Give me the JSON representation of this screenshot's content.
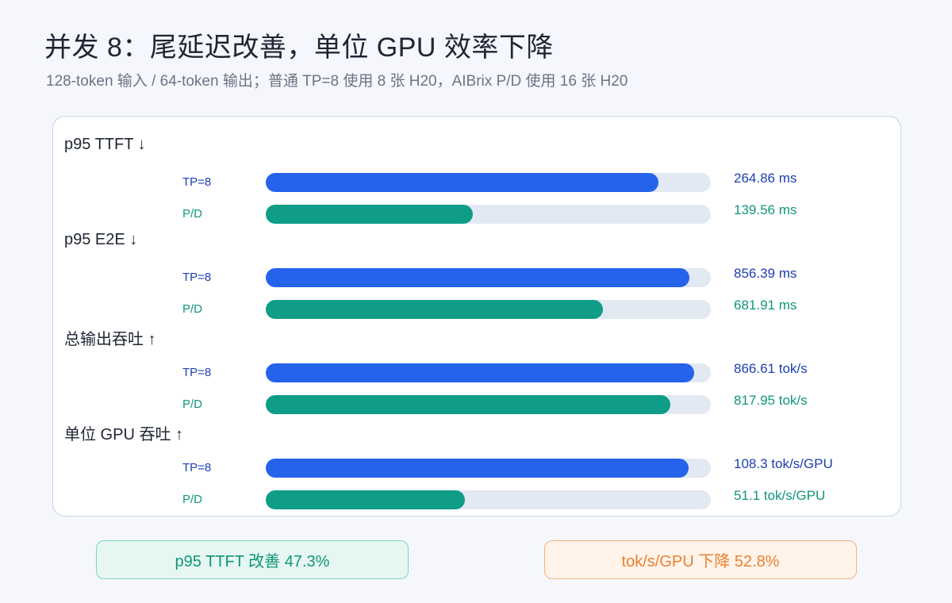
{
  "header": {
    "title": "并发 8：尾延迟改善，单位 GPU 效率下降",
    "subtitle": "128-token 输入 / 64-token 输出；普通 TP=8 使用 8 张 H20，AIBrix P/D 使用 16 张 H20"
  },
  "chart_data": {
    "type": "bar",
    "orientation": "horizontal",
    "legend": "none",
    "grid": false,
    "groups": [
      {
        "title": "p95 TTFT ↓",
        "max": 300,
        "rows": [
          {
            "label": "TP=8",
            "value": 264.86,
            "display": "264.86 ms",
            "color": "#2563eb",
            "text_color": "#1d3fb0"
          },
          {
            "label": "P/D",
            "value": 139.56,
            "display": "139.56 ms",
            "color": "#0f9d87",
            "text_color": "#11967a"
          }
        ]
      },
      {
        "title": "p95 E2E ↓",
        "max": 900,
        "rows": [
          {
            "label": "TP=8",
            "value": 856.39,
            "display": "856.39 ms",
            "color": "#2563eb",
            "text_color": "#1d3fb0"
          },
          {
            "label": "P/D",
            "value": 681.91,
            "display": "681.91 ms",
            "color": "#0f9d87",
            "text_color": "#11967a"
          }
        ]
      },
      {
        "title": "总输出吞吐 ↑",
        "max": 900,
        "rows": [
          {
            "label": "TP=8",
            "value": 866.61,
            "display": "866.61 tok/s",
            "color": "#2563eb",
            "text_color": "#1d3fb0"
          },
          {
            "label": "P/D",
            "value": 817.95,
            "display": "817.95 tok/s",
            "color": "#0f9d87",
            "text_color": "#11967a"
          }
        ]
      },
      {
        "title": "单位 GPU 吞吐 ↑",
        "max": 114,
        "rows": [
          {
            "label": "TP=8",
            "value": 108.3,
            "display": "108.3 tok/s/GPU",
            "color": "#2563eb",
            "text_color": "#1d3fb0"
          },
          {
            "label": "P/D",
            "value": 51.1,
            "display": "51.1 tok/s/GPU",
            "color": "#0f9d87",
            "text_color": "#11967a"
          }
        ]
      }
    ]
  },
  "summary": {
    "improve": "p95 TTFT 改善 47.3%",
    "decline": "tok/s/GPU 下降 52.8%"
  }
}
